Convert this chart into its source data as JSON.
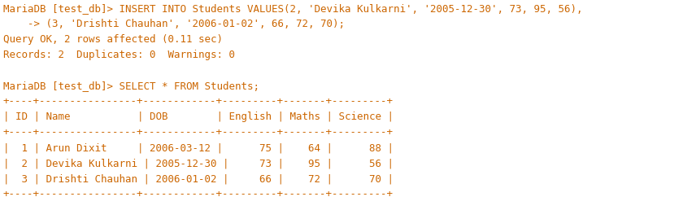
{
  "bg_color": "#ffffff",
  "text_color": "#cc6600",
  "font_family": "monospace",
  "font_size": 9.0,
  "figsize": [
    8.56,
    2.58
  ],
  "dpi": 100,
  "display_lines": [
    "MariaDB [test_db]> INSERT INTO Students VALUES(2, 'Devika Kulkarni', '2005-12-30', 73, 95, 56),",
    "    -> (3, 'Drishti Chauhan', '2006-01-02', 66, 72, 70);",
    "Query OK, 2 rows affected (0.11 sec)",
    "Records: 2  Duplicates: 0  Warnings: 0",
    "",
    "MariaDB [test_db]> SELECT * FROM Students;",
    "+----+----------------+------------+---------+-------+---------+",
    "| ID | Name           | DOB        | English | Maths | Science |",
    "+----+----------------+------------+---------+-------+---------+",
    "|  1 | Arun Dixit     | 2006-03-12 |      75 |    64 |      88 |",
    "|  2 | Devika Kulkarni | 2005-12-30 |     73 |    95 |      56 |",
    "|  3 | Drishti Chauhan | 2006-01-02 |     66 |    72 |      70 |",
    "+----+----------------+------------+---------+-------+---------+"
  ]
}
